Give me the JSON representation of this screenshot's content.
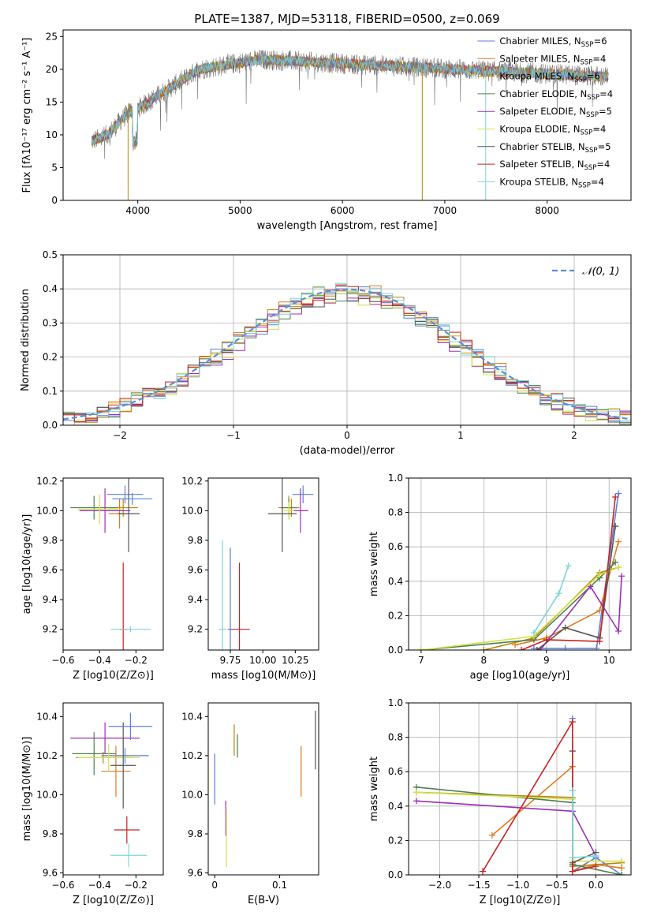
{
  "colors": [
    "#5b7fdb",
    "#e07a1f",
    "#b8860b",
    "#4f7f4f",
    "#9b30b5",
    "#d4e04a",
    "#555555",
    "#cc2020",
    "#7fd4d8"
  ],
  "chart_data": [
    {
      "id": "spectrum",
      "type": "line",
      "title": "PLATE=1387, MJD=53118, FIBERID=0500, z=0.069",
      "xlabel": "wavelength [Angstrom, rest frame]",
      "ylabel": "Flux [fλ10⁻¹⁷ erg cm⁻² s⁻¹ A⁻¹]",
      "xlim": [
        3270,
        8820
      ],
      "ylim": [
        0,
        26
      ],
      "xticks": [
        4000,
        5000,
        6000,
        7000,
        8000
      ],
      "yticks": [
        0,
        5,
        10,
        15,
        20,
        25
      ],
      "legend": [
        "Chabrier MILES, NSSP=6",
        "Salpeter MILES, NSSP=4",
        "Kroupa MILES, NSSP=6",
        "Chabrier ELODIE, NSSP=4",
        "Salpeter ELODIE, NSSP=5",
        "Kroupa ELODIE, NSSP=4",
        "Chabrier STELIB, NSSP=5",
        "Salpeter STELIB, NSSP=4",
        "Kroupa STELIB, NSSP=4"
      ],
      "legend_position": "right"
    },
    {
      "id": "residuals",
      "type": "histogram",
      "xlabel": "(data-model)/error",
      "ylabel": "Normed distribution",
      "xlim": [
        -2.5,
        2.5
      ],
      "ylim": [
        0,
        0.5
      ],
      "xticks": [
        -2,
        -1,
        0,
        1,
        2
      ],
      "yticks": [
        0.0,
        0.1,
        0.2,
        0.3,
        0.4,
        0.5
      ],
      "legend": [
        "𝒩(0, 1)"
      ],
      "legend_position": "top-right"
    },
    {
      "id": "age-vs-Z",
      "type": "errorbar",
      "xlabel": "Z [log10(Z/Z⊙)]",
      "ylabel": "age  [log10(age/yr)]",
      "xlim": [
        -0.6,
        -0.05
      ],
      "ylim": [
        9.06,
        10.22
      ],
      "xticks": [
        -0.6,
        -0.4,
        -0.2
      ],
      "yticks": [
        9.2,
        9.4,
        9.6,
        9.8,
        10.0,
        10.2
      ],
      "points": [
        {
          "x": -0.26,
          "y": 10.11,
          "xerr": 0.1,
          "yerr": 0.06
        },
        {
          "x": -0.29,
          "y": 9.98,
          "xerr": 0.06,
          "yerr": 0.1
        },
        {
          "x": -0.27,
          "y": 10.02,
          "xerr": 0.08,
          "yerr": 0.06
        },
        {
          "x": -0.43,
          "y": 10.02,
          "xerr": 0.13,
          "yerr": 0.08
        },
        {
          "x": -0.37,
          "y": 10.0,
          "xerr": 0.14,
          "yerr": 0.15
        },
        {
          "x": -0.4,
          "y": 10.01,
          "xerr": 0.12,
          "yerr": 0.1
        },
        {
          "x": -0.24,
          "y": 9.98,
          "xerr": 0.06,
          "yerr": 0.26
        },
        {
          "x": -0.27,
          "y": 9.2,
          "xerr": 0.02,
          "yerr": 0.45
        },
        {
          "x": -0.23,
          "y": 9.2,
          "xerr": 0.11,
          "yerr": 0.02
        },
        {
          "x": -0.22,
          "y": 10.08,
          "xerr": 0.11,
          "yerr": 0.04
        }
      ]
    },
    {
      "id": "age-vs-mass",
      "type": "errorbar",
      "xlabel": "mass [log10(M/M⊙)]",
      "ylabel": "",
      "xlim": [
        9.58,
        10.43
      ],
      "ylim": [
        9.06,
        10.22
      ],
      "xticks": [
        9.75,
        10.0,
        10.25
      ],
      "tick_labels": [
        "9.75",
        "10.00",
        "10.25"
      ],
      "yticks": [
        9.2,
        9.4,
        9.6,
        9.8,
        10.0,
        10.2
      ],
      "points": [
        {
          "x": 10.31,
          "y": 10.11,
          "xerr": 0.08,
          "yerr": 0.06
        },
        {
          "x": 10.2,
          "y": 10.02,
          "xerr": 0.08,
          "yerr": 0.08
        },
        {
          "x": 10.22,
          "y": 10.02,
          "xerr": 0.06,
          "yerr": 0.06
        },
        {
          "x": 10.2,
          "y": 10.02,
          "xerr": 0.06,
          "yerr": 0.06
        },
        {
          "x": 10.29,
          "y": 10.0,
          "xerr": 0.06,
          "yerr": 0.15
        },
        {
          "x": 10.2,
          "y": 10.0,
          "xerr": 0.04,
          "yerr": 0.06
        },
        {
          "x": 10.15,
          "y": 9.98,
          "xerr": 0.11,
          "yerr": 0.26
        },
        {
          "x": 9.82,
          "y": 9.2,
          "xerr": 0.08,
          "yerr": 0.45
        },
        {
          "x": 9.69,
          "y": 9.2,
          "xerr": 0.03,
          "yerr": 0.6
        },
        {
          "x": 9.75,
          "y": 9.2,
          "xerr": 0.02,
          "yerr": 0.55
        }
      ]
    },
    {
      "id": "mass-weight-vs-age",
      "type": "line",
      "xlabel": "age  [log10(age/yr)]",
      "ylabel": "mass weight",
      "xlim": [
        6.8,
        10.35
      ],
      "ylim": [
        0,
        1.0
      ],
      "xticks": [
        7,
        8,
        9,
        10
      ],
      "yticks": [
        0.0,
        0.2,
        0.4,
        0.6,
        0.8,
        1.0
      ],
      "series": [
        {
          "x": [
            8.8,
            9.3,
            9.8,
            10.15
          ],
          "y": [
            0.01,
            0.01,
            0.01,
            0.91
          ]
        },
        {
          "x": [
            8.5,
            9.0,
            9.85,
            10.15
          ],
          "y": [
            0.03,
            0.07,
            0.23,
            0.63
          ]
        },
        {
          "x": [
            8.0,
            8.8,
            9.85,
            10.15
          ],
          "y": [
            0.0,
            0.07,
            0.45,
            0.48
          ]
        },
        {
          "x": [
            7.0,
            8.8,
            9.85,
            10.1
          ],
          "y": [
            0.0,
            0.06,
            0.42,
            0.51
          ]
        },
        {
          "x": [
            8.9,
            9.7,
            10.15,
            10.2
          ],
          "y": [
            0.0,
            0.37,
            0.11,
            0.43
          ]
        },
        {
          "x": [
            7.0,
            8.8,
            9.85,
            10.15
          ],
          "y": [
            0.0,
            0.08,
            0.44,
            0.48
          ]
        },
        {
          "x": [
            8.85,
            9.3,
            9.85,
            10.1
          ],
          "y": [
            0.0,
            0.13,
            0.07,
            0.72
          ]
        },
        {
          "x": [
            8.6,
            9.0,
            9.85,
            10.1
          ],
          "y": [
            0.0,
            0.06,
            0.05,
            0.89
          ]
        },
        {
          "x": [
            8.8,
            9.2,
            9.35
          ],
          "y": [
            0.1,
            0.33,
            0.49
          ]
        }
      ]
    },
    {
      "id": "mass-vs-Z",
      "type": "errorbar",
      "xlabel": "Z [log10(Z/Z⊙)]",
      "ylabel": "mass [log10(M/M⊙)]",
      "xlim": [
        -0.6,
        -0.05
      ],
      "ylim": [
        9.59,
        10.47
      ],
      "xticks": [
        -0.6,
        -0.4,
        -0.2
      ],
      "yticks": [
        9.6,
        9.8,
        10.0,
        10.2,
        10.4
      ],
      "points": [
        {
          "x": -0.26,
          "y": 10.2,
          "xerr": 0.13,
          "yerr": 0.04
        },
        {
          "x": -0.31,
          "y": 10.12,
          "xerr": 0.08,
          "yerr": 0.13
        },
        {
          "x": -0.38,
          "y": 10.19,
          "xerr": 0.15,
          "yerr": 0.03
        },
        {
          "x": -0.43,
          "y": 10.21,
          "xerr": 0.12,
          "yerr": 0.11
        },
        {
          "x": -0.37,
          "y": 10.29,
          "xerr": 0.19,
          "yerr": 0.08
        },
        {
          "x": -0.35,
          "y": 10.19,
          "xerr": 0.17,
          "yerr": 0.07
        },
        {
          "x": -0.27,
          "y": 10.15,
          "xerr": 0.07,
          "yerr": 0.22
        },
        {
          "x": -0.25,
          "y": 9.82,
          "xerr": 0.07,
          "yerr": 0.07
        },
        {
          "x": -0.24,
          "y": 9.69,
          "xerr": 0.1,
          "yerr": 0.06
        },
        {
          "x": -0.23,
          "y": 10.35,
          "xerr": 0.12,
          "yerr": 0.07
        }
      ]
    },
    {
      "id": "mass-vs-ebv",
      "type": "errorbar",
      "xlabel": "E(B-V)",
      "ylabel": "",
      "xlim": [
        -0.01,
        0.16
      ],
      "ylim": [
        9.59,
        10.47
      ],
      "xticks": [
        0.0,
        0.1
      ],
      "yticks": [
        9.6,
        9.8,
        10.0,
        10.2,
        10.4
      ],
      "points": [
        {
          "x": 0.0,
          "y": 10.08,
          "xerr": 0.0,
          "yerr": 0.13
        },
        {
          "x": 0.133,
          "y": 10.12,
          "xerr": 0.0,
          "yerr": 0.13
        },
        {
          "x": 0.03,
          "y": 10.28,
          "xerr": 0.0,
          "yerr": 0.08
        },
        {
          "x": 0.035,
          "y": 10.25,
          "xerr": 0.0,
          "yerr": 0.06
        },
        {
          "x": 0.017,
          "y": 9.88,
          "xerr": 0.0,
          "yerr": 0.09
        },
        {
          "x": 0.018,
          "y": 9.78,
          "xerr": 0.0,
          "yerr": 0.15
        },
        {
          "x": 0.155,
          "y": 10.28,
          "xerr": 0.0,
          "yerr": 0.15
        }
      ]
    },
    {
      "id": "mass-weight-vs-Z",
      "type": "line",
      "xlabel": "Z [log10(Z/Z⊙)]",
      "ylabel": "mass weight",
      "xlim": [
        -2.4,
        0.45
      ],
      "ylim": [
        0,
        1.0
      ],
      "xticks": [
        -2.0,
        -1.5,
        -1.0,
        -0.5,
        0.0
      ],
      "tick_labels": [
        "−2.0",
        "−1.5",
        "−1.0",
        "−0.5",
        "0.0"
      ],
      "yticks": [
        0.0,
        0.2,
        0.4,
        0.6,
        0.8,
        1.0
      ],
      "series": [
        {
          "x": [
            -0.3,
            -0.3,
            0.0,
            0.33
          ],
          "y": [
            0.91,
            0.02,
            0.1,
            0.0
          ]
        },
        {
          "x": [
            -1.33,
            -0.3,
            -0.3,
            0.0,
            0.33
          ],
          "y": [
            0.23,
            0.63,
            0.02,
            0.06,
            0.04
          ]
        },
        {
          "x": [
            -2.3,
            -0.3,
            -0.3,
            0.33
          ],
          "y": [
            0.48,
            0.45,
            0.05,
            0.07
          ]
        },
        {
          "x": [
            -2.3,
            -0.3,
            -0.3,
            0.33
          ],
          "y": [
            0.51,
            0.42,
            0.06,
            0.0
          ]
        },
        {
          "x": [
            -2.3,
            -0.3,
            0.0
          ],
          "y": [
            0.43,
            0.37,
            0.11
          ]
        },
        {
          "x": [
            -2.3,
            -0.3,
            -0.3,
            0.33
          ],
          "y": [
            0.48,
            0.44,
            0.08,
            0.08
          ]
        },
        {
          "x": [
            -0.3,
            -0.3,
            0.0
          ],
          "y": [
            0.72,
            0.07,
            0.13
          ]
        },
        {
          "x": [
            -1.45,
            -0.3,
            -0.3,
            0.0
          ],
          "y": [
            0.02,
            0.89,
            0.02,
            0.05
          ]
        },
        {
          "x": [
            -0.3,
            -0.3,
            0.0
          ],
          "y": [
            0.49,
            0.1,
            0.11
          ]
        }
      ]
    }
  ]
}
